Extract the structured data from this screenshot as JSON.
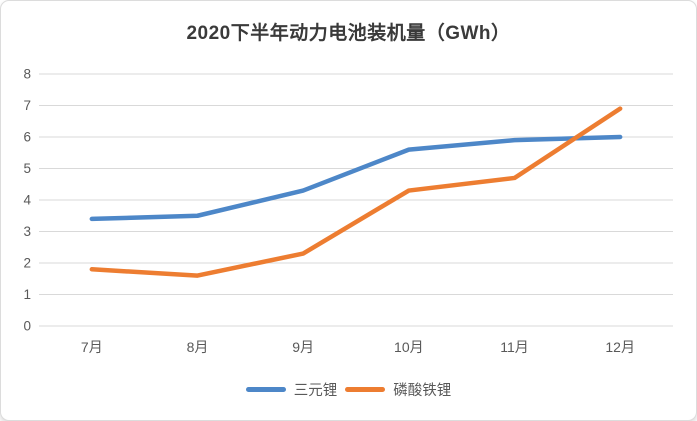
{
  "chart_data": {
    "type": "line",
    "title": "2020下半年动力电池装机量（GWh）",
    "categories": [
      "7月",
      "8月",
      "9月",
      "10月",
      "11月",
      "12月"
    ],
    "series": [
      {
        "name": "三元锂",
        "color": "#4d87c8",
        "values": [
          3.4,
          3.5,
          4.3,
          5.6,
          5.9,
          6.0
        ]
      },
      {
        "name": "磷酸铁锂",
        "color": "#ed7d31",
        "values": [
          1.8,
          1.6,
          2.3,
          4.3,
          4.7,
          6.9
        ]
      }
    ],
    "xlabel": "",
    "ylabel": "",
    "ylim": [
      0,
      8
    ],
    "yticks": [
      0,
      1,
      2,
      3,
      4,
      5,
      6,
      7,
      8
    ],
    "grid": "horizontal",
    "legend_position": "bottom-center",
    "colors": {
      "grid": "#d9d9d9",
      "tick_text": "#595959",
      "title_text": "#3a3a3a",
      "background": "#ffffff",
      "card_border": "#dcdcdc"
    }
  }
}
